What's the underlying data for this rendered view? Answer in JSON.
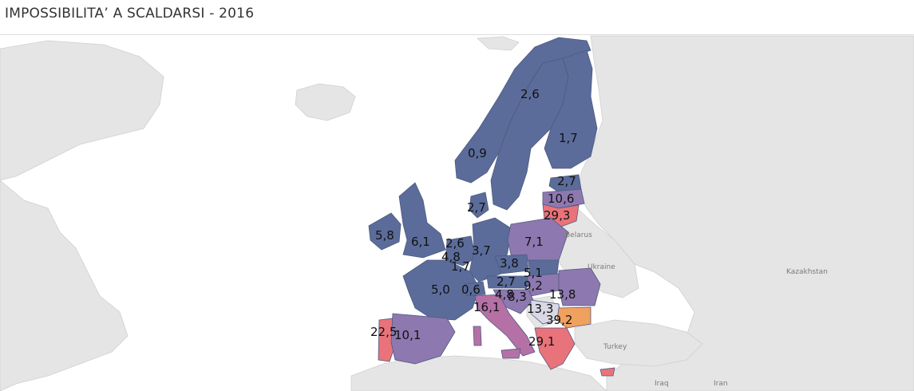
{
  "title": "IMPOSSIBILITA’ A SCALDARSI - 2016",
  "colors": {
    "low": "#5b6c9b",
    "mid": "#8e78b0",
    "midhigh": "#b571a6",
    "high": "#e9737a",
    "max": "#f0a15e",
    "land": "#e5e5e5",
    "water": "#ffffff"
  },
  "basemap_labels": [
    "Belarus",
    "Ukraine",
    "Kazakhstan",
    "Turkey",
    "Iraq",
    "Iran"
  ],
  "values": [
    {
      "id": "sweden",
      "v": "2,6"
    },
    {
      "id": "finland",
      "v": "1,7"
    },
    {
      "id": "norway",
      "v": "0,9"
    },
    {
      "id": "estonia",
      "v": "2,7"
    },
    {
      "id": "latvia",
      "v": "10,6"
    },
    {
      "id": "lithuania",
      "v": "29,3"
    },
    {
      "id": "denmark",
      "v": "2,7"
    },
    {
      "id": "ireland",
      "v": "5,8"
    },
    {
      "id": "uk",
      "v": "6,1"
    },
    {
      "id": "netherlands",
      "v": "2,6"
    },
    {
      "id": "germany",
      "v": "3,7"
    },
    {
      "id": "poland",
      "v": "7,1"
    },
    {
      "id": "belgium",
      "v": "4,8"
    },
    {
      "id": "luxembourg",
      "v": "1,7"
    },
    {
      "id": "czech",
      "v": "3,8"
    },
    {
      "id": "slovakia",
      "v": "5,1"
    },
    {
      "id": "austria",
      "v": "2,7"
    },
    {
      "id": "hungary",
      "v": "9,2"
    },
    {
      "id": "france",
      "v": "5,0"
    },
    {
      "id": "switzerland",
      "v": "0,6"
    },
    {
      "id": "slovenia",
      "v": "4,8"
    },
    {
      "id": "croatia",
      "v": "8,3"
    },
    {
      "id": "romania",
      "v": "13,8"
    },
    {
      "id": "italy",
      "v": "16,1"
    },
    {
      "id": "serbia",
      "v": "13,3"
    },
    {
      "id": "bulgaria",
      "v": "39,2"
    },
    {
      "id": "portugal",
      "v": "22,5"
    },
    {
      "id": "spain",
      "v": "10,1"
    },
    {
      "id": "greece",
      "v": "29,1"
    }
  ]
}
